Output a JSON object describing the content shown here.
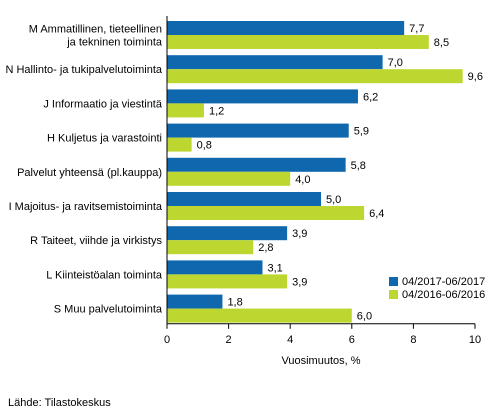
{
  "chart_data": {
    "type": "bar",
    "orientation": "horizontal",
    "categories": [
      [
        "M Ammatillinen, tieteellinen",
        "ja tekninen toiminta"
      ],
      [
        "N Hallinto- ja tukipalvelutoiminta"
      ],
      [
        "J Informaatio ja viestintä"
      ],
      [
        "H Kuljetus ja varastointi"
      ],
      [
        "Palvelut yhteensä (pl.kauppa)"
      ],
      [
        "I Majoitus- ja ravitsemistoiminta"
      ],
      [
        "R Taiteet, viihde ja virkistys"
      ],
      [
        "L Kiinteistöalan toiminta"
      ],
      [
        "S Muu palvelutoiminta"
      ]
    ],
    "series": [
      {
        "name": "04/2017-06/2017",
        "color": "#0f67ad",
        "values": [
          7.7,
          7.0,
          6.2,
          5.9,
          5.8,
          5.0,
          3.9,
          3.1,
          1.8
        ],
        "labels": [
          "7,7",
          "7,0",
          "6,2",
          "5,9",
          "5,8",
          "5,0",
          "3,9",
          "3,1",
          "1,8"
        ]
      },
      {
        "name": "04/2016-06/2016",
        "color": "#bed730",
        "values": [
          8.5,
          9.6,
          1.2,
          0.8,
          4.0,
          6.4,
          2.8,
          3.9,
          6.0
        ],
        "labels": [
          "8,5",
          "9,6",
          "1,2",
          "0,8",
          "4,0",
          "6,4",
          "2,8",
          "3,9",
          "6,0"
        ]
      }
    ],
    "xlabel": "Vuosimuutos, %",
    "xlim": [
      0,
      10
    ],
    "xticks": [
      0,
      2,
      4,
      6,
      8,
      10
    ],
    "xtick_labels": [
      "0",
      "2",
      "4",
      "6",
      "8",
      "10"
    ],
    "grid": false,
    "legend_position": "bottom-right"
  },
  "source": "Lähde: Tilastokeskus"
}
